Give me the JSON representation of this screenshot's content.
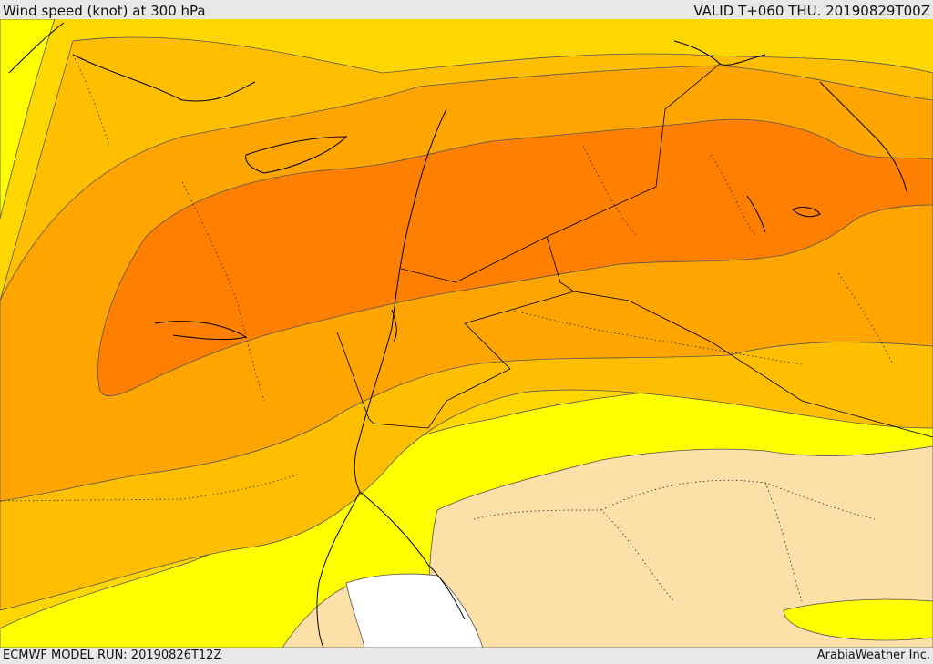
{
  "header": {
    "title": "Wind speed (knot) at 300 hPa",
    "valid": "VALID T+060 THU. 20190829T00Z"
  },
  "footer": {
    "model_run": "ECMWF MODEL RUN: 20190826T12Z",
    "credit": "ArabiaWeather Inc."
  },
  "colors": {
    "band_low": "#ffffff",
    "band_sand": "#fddfa8",
    "band_yellow": "#ffff00",
    "band_gold": "#ffd700",
    "band_amber": "#ffbf00",
    "band_orange_light": "#ffa500",
    "band_orange": "#ff7f00",
    "coastline": "#000000"
  }
}
